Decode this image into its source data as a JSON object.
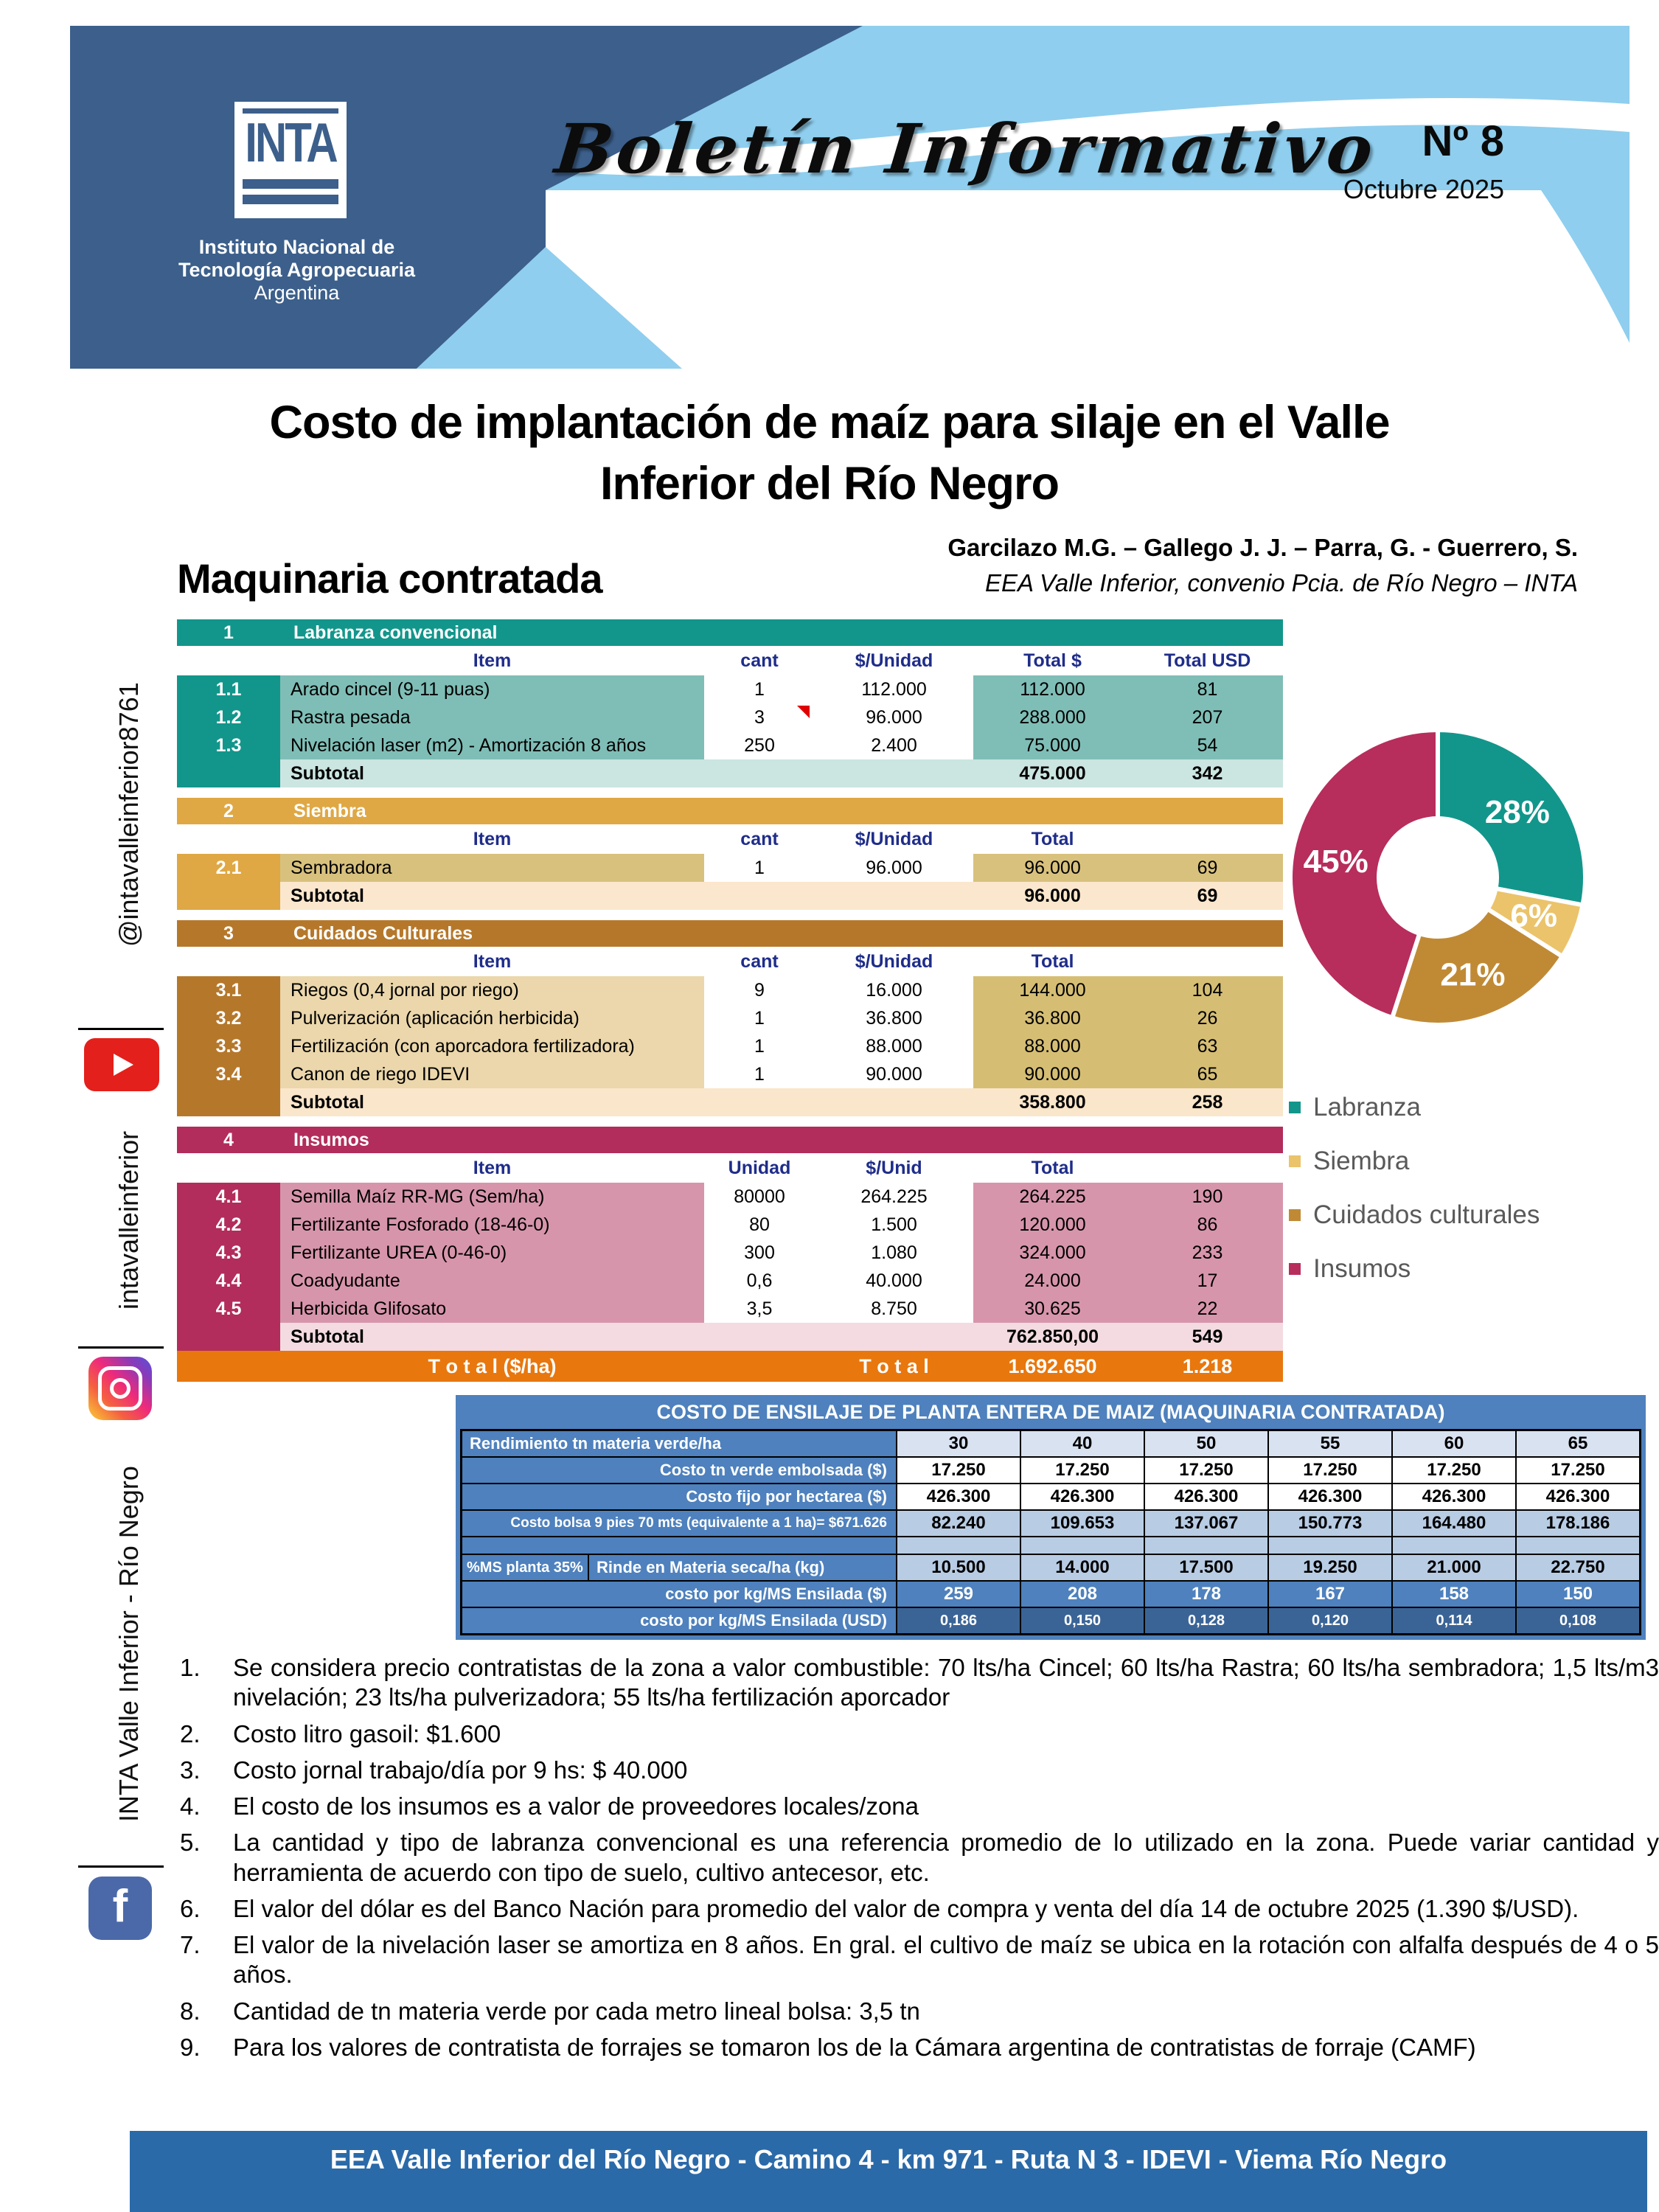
{
  "header": {
    "issue": "Nº 8",
    "date": "Octubre 2025",
    "script_title": "Boletín Informativo",
    "logo": {
      "acronym": "INTA",
      "line1": "Instituto Nacional de",
      "line2": "Tecnología Agropecuaria",
      "line3": "Argentina"
    },
    "colors": {
      "dark_blue": "#3C5F8B",
      "light_blue": "#8FCEEE"
    }
  },
  "title": "Costo de implantación de maíz para silaje en el Valle Inferior del Río Negro",
  "authors": "Garcilazo M.G. – Gallego J. J. – Parra, G.  - Guerrero, S.",
  "affiliation": "EEA Valle Inferior, convenio Pcia. de Río Negro – INTA",
  "section_heading": "Maquinaria contratada",
  "cost_tables": [
    {
      "num": "1",
      "title": "Labranza convencional",
      "columns": [
        "Item",
        "cant",
        "$/Unidad",
        "Total $",
        "Total USD"
      ],
      "theme": {
        "header": "#12968B",
        "rownum": "#12968B",
        "item_bg": "#7FBEB6",
        "total_bg": "#7FBEB6",
        "subtotal_bg": "#CBE5E1"
      },
      "rows": [
        {
          "num": "1.1",
          "item": "Arado cincel (9-11 puas)",
          "cant": "1",
          "unit": "112.000",
          "total": "112.000",
          "usd": "81"
        },
        {
          "num": "1.2",
          "item": "Rastra pesada",
          "cant": "3",
          "unit": "96.000",
          "total": "288.000",
          "usd": "207",
          "marker": true
        },
        {
          "num": "1.3",
          "item": "Nivelación laser (m2) - Amortización 8 años",
          "cant": "250",
          "unit": "2.400",
          "total": "75.000",
          "usd": "54"
        }
      ],
      "subtotal": {
        "label": "Subtotal",
        "total": "475.000",
        "usd": "342"
      }
    },
    {
      "num": "2",
      "title": "Siembra",
      "columns": [
        "Item",
        "cant",
        "$/Unidad",
        "Total",
        ""
      ],
      "theme": {
        "header": "#DFA845",
        "rownum": "#DFA845",
        "item_bg": "#D8C17D",
        "total_bg": "#D8C17D",
        "subtotal_bg": "#FBE7CD"
      },
      "rows": [
        {
          "num": "2.1",
          "item": "Sembradora",
          "cant": "1",
          "unit": "96.000",
          "total": "96.000",
          "usd": "69"
        }
      ],
      "subtotal": {
        "label": "Subtotal",
        "total": "96.000",
        "usd": "69"
      }
    },
    {
      "num": "3",
      "title": "Cuidados Culturales",
      "columns": [
        "Item",
        "cant",
        "$/Unidad",
        "Total",
        ""
      ],
      "theme": {
        "header": "#B5782B",
        "rownum": "#B5782B",
        "item_bg": "#EBD7AB",
        "total_bg": "#D5BE74",
        "subtotal_bg": "#FAE6CA"
      },
      "rows": [
        {
          "num": "3.1",
          "item": "Riegos (0,4 jornal por riego)",
          "cant": "9",
          "unit": "16.000",
          "total": "144.000",
          "usd": "104"
        },
        {
          "num": "3.2",
          "item": "Pulverización (aplicación herbicida)",
          "cant": "1",
          "unit": "36.800",
          "total": "36.800",
          "usd": "26"
        },
        {
          "num": "3.3",
          "item": "Fertilización (con aporcadora fertilizadora)",
          "cant": "1",
          "unit": "88.000",
          "total": "88.000",
          "usd": "63"
        },
        {
          "num": "3.4",
          "item": "Canon de riego IDEVI",
          "cant": "1",
          "unit": "90.000",
          "total": "90.000",
          "usd": "65"
        }
      ],
      "subtotal": {
        "label": "Subtotal",
        "total": "358.800",
        "usd": "258"
      }
    },
    {
      "num": "4",
      "title": "Insumos",
      "columns": [
        "Item",
        "Unidad",
        "$/Unid",
        "Total",
        ""
      ],
      "theme": {
        "header": "#B22D5B",
        "rownum": "#B22D5B",
        "item_bg": "#D795AC",
        "total_bg": "#D795AC",
        "subtotal_bg": "#F3DBE1"
      },
      "rows": [
        {
          "num": "4.1",
          "item": "Semilla Maíz RR-MG (Sem/ha)",
          "cant": "80000",
          "unit": "264.225",
          "total": "264.225",
          "usd": "190"
        },
        {
          "num": "4.2",
          "item": "Fertilizante Fosforado (18-46-0)",
          "cant": "80",
          "unit": "1.500",
          "total": "120.000",
          "usd": "86"
        },
        {
          "num": "4.3",
          "item": "Fertilizante UREA (0-46-0)",
          "cant": "300",
          "unit": "1.080",
          "total": "324.000",
          "usd": "233"
        },
        {
          "num": "4.4",
          "item": "Coadyudante",
          "cant": "0,6",
          "unit": "40.000",
          "total": "24.000",
          "usd": "17"
        },
        {
          "num": "4.5",
          "item": "Herbicida Glifosato",
          "cant": "3,5",
          "unit": "8.750",
          "total": "30.625",
          "usd": "22"
        }
      ],
      "subtotal": {
        "label": "Subtotal",
        "total": "762.850,00",
        "usd": "549"
      },
      "grand_total": {
        "label": "T o t a l  ($/ha)",
        "mid_label": "T o t a l",
        "total": "1.692.650",
        "usd": "1.218",
        "bg": "#E8770E"
      }
    }
  ],
  "chart_data": {
    "type": "pie",
    "subtype": "donut",
    "labels": [
      "Labranza",
      "Siembra",
      "Cuidados culturales",
      "Insumos"
    ],
    "values": [
      28,
      6,
      21,
      45
    ],
    "unit": "%",
    "colors": [
      "#12968B",
      "#EBC36B",
      "#C08A35",
      "#B72D5C"
    ],
    "start_angle_deg": 0,
    "direction": "clockwise",
    "legend_position": "bottom-right"
  },
  "ensilaje_table": {
    "title": "COSTO DE ENSILAJE DE PLANTA ENTERA DE MAIZ (MAQUINARIA CONTRATADA)",
    "rows": [
      {
        "label": "Rendimiento tn materia verde/ha",
        "values": [
          "30",
          "40",
          "50",
          "55",
          "60",
          "65"
        ],
        "style": "head"
      },
      {
        "label": "Costo tn verde embolsada ($)",
        "values": [
          "17.250",
          "17.250",
          "17.250",
          "17.250",
          "17.250",
          "17.250"
        ],
        "style": "white"
      },
      {
        "label": "Costo fijo por hectarea ($)",
        "values": [
          "426.300",
          "426.300",
          "426.300",
          "426.300",
          "426.300",
          "426.300"
        ],
        "style": "white"
      },
      {
        "label": "Costo bolsa 9 pies 70 mts (equivalente a 1 ha)= $671.626",
        "values": [
          "82.240",
          "109.653",
          "137.067",
          "150.773",
          "164.480",
          "178.186"
        ],
        "style": "light"
      },
      {
        "label": "",
        "values": [
          "",
          "",
          "",
          "",
          "",
          ""
        ],
        "style": "blank"
      },
      {
        "label2": "%MS planta 35%",
        "label": "Rinde en Materia seca/ha (kg)",
        "values": [
          "10.500",
          "14.000",
          "17.500",
          "19.250",
          "21.000",
          "22.750"
        ],
        "style": "light"
      },
      {
        "label": "costo por kg/MS  Ensilada ($)",
        "values": [
          "259",
          "208",
          "178",
          "167",
          "158",
          "150"
        ],
        "style": "blue"
      },
      {
        "label": "costo por kg/MS  Ensilada (USD)",
        "values": [
          "0,186",
          "0,150",
          "0,128",
          "0,120",
          "0,114",
          "0,108"
        ],
        "style": "dark"
      }
    ]
  },
  "footnotes": [
    "Se considera precio contratistas de la zona a valor combustible: 70 lts/ha Cincel; 60 lts/ha Rastra; 60 lts/ha sembradora; 1,5 lts/m3 nivelación; 23 lts/ha pulverizadora; 55 lts/ha fertilización aporcador",
    "Costo litro gasoil: $1.600",
    "Costo jornal trabajo/día por 9 hs: $ 40.000",
    "El costo de los insumos es a valor de proveedores locales/zona",
    "La cantidad y tipo de labranza convencional es una referencia promedio de lo utilizado en la zona. Puede variar cantidad y herramienta de acuerdo con tipo de suelo, cultivo antecesor, etc.",
    "El valor del dólar es del Banco Nación para promedio del valor de compra y venta del día 14 de octubre 2025 (1.390 $/USD).",
    "El valor de la nivelación laser se amortiza en 8 años. En gral. el cultivo de maíz se ubica en la rotación con alfalfa después de 4 o 5 años.",
    "Cantidad de tn materia verde por cada metro lineal bolsa: 3,5 tn",
    "Para los valores de contratista de forrajes se tomaron los de la Cámara argentina de contratistas de forraje (CAMF)"
  ],
  "footer": "EEA Valle Inferior del Río Negro - Camino 4 - km 971 - Ruta N 3 - IDEVI - Viema Río Negro",
  "social": {
    "youtube": "@intavalleinferior8761",
    "instagram": "intavalleinferior",
    "facebook": "INTA Valle Inferior - Río Negro"
  }
}
